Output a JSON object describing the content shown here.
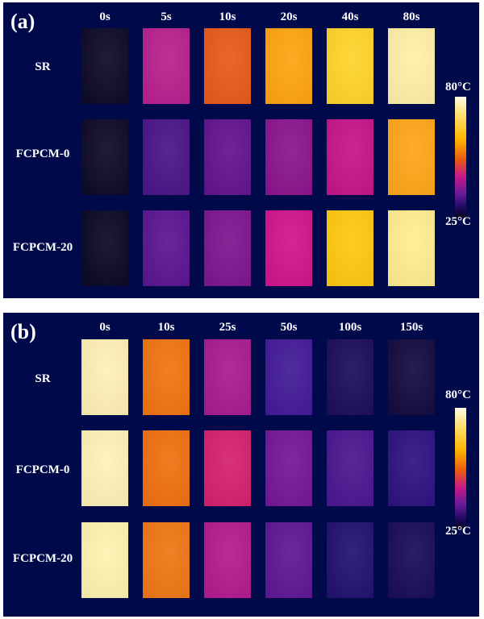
{
  "panel_a": {
    "label": "(a)",
    "times": [
      "0s",
      "5s",
      "10s",
      "20s",
      "40s",
      "80s"
    ],
    "rows": [
      {
        "label": "SR",
        "colors": [
          "#0c0828",
          "#b8208e",
          "#e85a18",
          "#ffa410",
          "#ffd42a",
          "#fff0a8"
        ]
      },
      {
        "label": "FCPCM-0",
        "colors": [
          "#0c0828",
          "#4a1488",
          "#62128e",
          "#8a148e",
          "#c4148a",
          "#ffa618"
        ]
      },
      {
        "label": "FCPCM-20",
        "colors": [
          "#0a0726",
          "#5a1490",
          "#7e1490",
          "#d0148a",
          "#ffc810",
          "#ffee90"
        ]
      }
    ],
    "colorbar": {
      "max": "80°C",
      "min": "25°C"
    }
  },
  "panel_b": {
    "label": "(b)",
    "times": [
      "0s",
      "10s",
      "25s",
      "50s",
      "100s",
      "150s"
    ],
    "rows": [
      {
        "label": "SR",
        "colors": [
          "#fff0b4",
          "#f07410",
          "#aa1a8e",
          "#421a96",
          "#1c0c5c",
          "#120a3e"
        ]
      },
      {
        "label": "FCPCM-0",
        "colors": [
          "#fff2b8",
          "#f07010",
          "#d4206e",
          "#741696",
          "#4a1690",
          "#2c1280"
        ]
      },
      {
        "label": "FCPCM-20",
        "colors": [
          "#fff2b0",
          "#f07614",
          "#b41a8e",
          "#5e1694",
          "#221070",
          "#180c58"
        ]
      }
    ],
    "colorbar": {
      "max": "80°C",
      "min": "25°C"
    }
  }
}
